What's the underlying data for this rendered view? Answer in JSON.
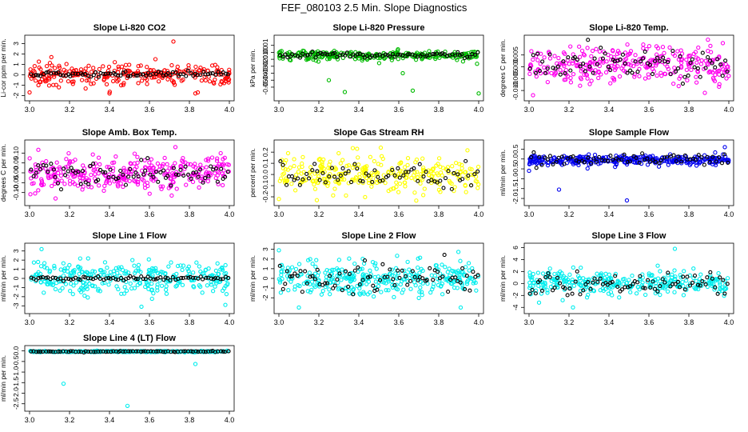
{
  "page_title": "FEF_080103  2.5 Min. Slope Diagnostics",
  "colors": {
    "black_series": "#000000",
    "frame": "#000000",
    "background": "#ffffff"
  },
  "chart_data": [
    {
      "type": "scatter",
      "title": "Slope Li-820 CO2",
      "ylabel": "Li-cor ppm per min.",
      "color": "#ff0000",
      "xlim": [
        3.0,
        4.0
      ],
      "ylim": [
        -2.2,
        3.5
      ],
      "xticks": [
        "3.0",
        "3.2",
        "3.4",
        "3.6",
        "3.8",
        "4.0"
      ],
      "yticks": [
        {
          "v": -2,
          "label": "-2"
        },
        {
          "v": -1,
          "label": "-1"
        },
        {
          "v": 0,
          "label": "0"
        },
        {
          "v": 1,
          "label": "1"
        },
        {
          "v": 2,
          "label": "2"
        },
        {
          "v": 3,
          "label": "3"
        }
      ],
      "center": 0.05,
      "spread": 0.5,
      "black_spread": 0.12,
      "n_color": 260,
      "n_black": 80,
      "outliers": [
        [
          3.72,
          3.2
        ],
        [
          3.4,
          -1.8
        ],
        [
          3.83,
          -1.8
        ],
        [
          3.0,
          -1.7
        ],
        [
          3.63,
          1.5
        ]
      ]
    },
    {
      "type": "scatter",
      "title": "Slope Li-820 Pressure",
      "ylabel": "kPa per min.",
      "color": "#00bb00",
      "xlim": [
        3.0,
        4.0
      ],
      "ylim": [
        -0.065,
        0.02
      ],
      "xticks": [
        "3.0",
        "3.2",
        "3.4",
        "3.6",
        "3.8",
        "4.0"
      ],
      "yticks": [
        {
          "v": -0.05,
          "label": "-0.05"
        },
        {
          "v": -0.04,
          "label": "-0.04"
        },
        {
          "v": -0.03,
          "label": "-0.03"
        },
        {
          "v": -0.02,
          "label": "-0.02"
        },
        {
          "v": -0.01,
          "label": "-0.01"
        },
        {
          "v": 0.0,
          "label": "0.00"
        },
        {
          "v": 0.01,
          "label": "0.01"
        }
      ],
      "center": -0.004,
      "spread": 0.0035,
      "black_spread": 0.002,
      "n_color": 260,
      "n_black": 80,
      "outliers": [
        [
          3.33,
          -0.057
        ],
        [
          3.67,
          -0.055
        ],
        [
          4.0,
          -0.059
        ],
        [
          3.25,
          -0.04
        ],
        [
          3.62,
          -0.03
        ]
      ]
    },
    {
      "type": "scatter",
      "title": "Slope Li-820 Temp.",
      "ylabel": "degrees C per min.",
      "color": "#ff00ee",
      "xlim": [
        3.0,
        4.0
      ],
      "ylim": [
        -0.013,
        0.012
      ],
      "xticks": [
        "3.0",
        "3.2",
        "3.4",
        "3.6",
        "3.8",
        "4.0"
      ],
      "yticks": [
        {
          "v": -0.01,
          "label": "-0.010"
        },
        {
          "v": -0.005,
          "label": "-0.005"
        },
        {
          "v": 0.0,
          "label": "0.000"
        },
        {
          "v": 0.005,
          "label": "0.005"
        }
      ],
      "center": 0.001,
      "spread": 0.004,
      "black_spread": 0.003,
      "n_color": 300,
      "n_black": 80,
      "outliers": [
        [
          3.97,
          0.01
        ],
        [
          3.02,
          -0.012
        ],
        [
          3.88,
          -0.011
        ]
      ]
    },
    {
      "type": "scatter",
      "title": "Slope Amb. Box Temp.",
      "ylabel": "degrees C per min.",
      "color": "#ff00ee",
      "xlim": [
        3.0,
        4.0
      ],
      "ylim": [
        -0.15,
        0.15
      ],
      "xticks": [
        "3.0",
        "3.2",
        "3.4",
        "3.6",
        "3.8",
        "4.0"
      ],
      "yticks": [
        {
          "v": -0.1,
          "label": "-0.10"
        },
        {
          "v": -0.05,
          "label": "-0.05"
        },
        {
          "v": 0.0,
          "label": "0.00"
        },
        {
          "v": 0.05,
          "label": "0.05"
        },
        {
          "v": 0.1,
          "label": "0.10"
        }
      ],
      "center": 0.0,
      "spread": 0.045,
      "black_spread": 0.035,
      "n_color": 320,
      "n_black": 80,
      "outliers": [
        [
          3.73,
          0.13
        ],
        [
          3.13,
          -0.13
        ]
      ]
    },
    {
      "type": "scatter",
      "title": "Slope Gas Stream RH",
      "ylabel": "percent per min.",
      "color": "#ffff00",
      "xlim": [
        3.0,
        4.0
      ],
      "ylim": [
        -0.25,
        0.28
      ],
      "xticks": [
        "3.0",
        "3.2",
        "3.4",
        "3.6",
        "3.8",
        "4.0"
      ],
      "yticks": [
        {
          "v": -0.2,
          "label": "-0.2"
        },
        {
          "v": -0.1,
          "label": "-0.1"
        },
        {
          "v": 0.0,
          "label": "0.0"
        },
        {
          "v": 0.1,
          "label": "0.1"
        },
        {
          "v": 0.2,
          "label": "0.2"
        }
      ],
      "center": 0.0,
      "spread": 0.07,
      "black_spread": 0.07,
      "n_color": 300,
      "n_black": 70,
      "outliers": [
        [
          3.0,
          -0.22
        ],
        [
          3.51,
          0.24
        ],
        [
          3.19,
          -0.23
        ]
      ]
    },
    {
      "type": "scatter",
      "title": "Slope Sample Flow",
      "ylabel": "ml/min per min.",
      "color": "#0000ee",
      "xlim": [
        3.0,
        4.0
      ],
      "ylim": [
        -2.2,
        0.8
      ],
      "xticks": [
        "3.0",
        "3.2",
        "3.4",
        "3.6",
        "3.8",
        "4.0"
      ],
      "yticks": [
        {
          "v": -2.0,
          "label": "-2.0"
        },
        {
          "v": -1.5,
          "label": "-1.5"
        },
        {
          "v": -1.0,
          "label": "-1.0"
        },
        {
          "v": -0.5,
          "label": "-0.5"
        },
        {
          "v": 0.0,
          "label": "0.0"
        },
        {
          "v": 0.5,
          "label": "0.5"
        }
      ],
      "center": -0.05,
      "spread": 0.12,
      "black_spread": 0.15,
      "n_color": 320,
      "n_black": 70,
      "outliers": [
        [
          3.15,
          -1.55
        ],
        [
          3.49,
          -2.1
        ],
        [
          3.98,
          0.6
        ],
        [
          3.0,
          -0.6
        ]
      ]
    },
    {
      "type": "scatter",
      "title": "Slope Line 1 Flow",
      "ylabel": "ml/min per min.",
      "color": "#00eeee",
      "xlim": [
        3.0,
        4.0
      ],
      "ylim": [
        -3.5,
        3.5
      ],
      "xticks": [
        "3.0",
        "3.2",
        "3.4",
        "3.6",
        "3.8",
        "4.0"
      ],
      "yticks": [
        {
          "v": -3,
          "label": "-3"
        },
        {
          "v": -2,
          "label": "-2"
        },
        {
          "v": -1,
          "label": "-1"
        },
        {
          "v": 0,
          "label": "0"
        },
        {
          "v": 1,
          "label": "1"
        },
        {
          "v": 2,
          "label": "2"
        },
        {
          "v": 3,
          "label": "3"
        }
      ],
      "center": 0.0,
      "spread": 0.9,
      "black_spread": 0.12,
      "n_color": 300,
      "n_black": 80,
      "outliers": [
        [
          3.06,
          3.2
        ],
        [
          3.56,
          -3.1
        ],
        [
          3.98,
          -2.9
        ]
      ]
    },
    {
      "type": "scatter",
      "title": "Slope Line 2 Flow",
      "ylabel": "ml/min per min.",
      "color": "#00eeee",
      "xlim": [
        3.0,
        4.0
      ],
      "ylim": [
        -3.3,
        3.3
      ],
      "xticks": [
        "3.0",
        "3.2",
        "3.4",
        "3.6",
        "3.8",
        "4.0"
      ],
      "yticks": [
        {
          "v": -2,
          "label": "-2"
        },
        {
          "v": -1,
          "label": "-1"
        },
        {
          "v": 0,
          "label": "0"
        },
        {
          "v": 1,
          "label": "1"
        },
        {
          "v": 2,
          "label": "2"
        },
        {
          "v": 3,
          "label": "3"
        }
      ],
      "center": 0.0,
      "spread": 0.9,
      "black_spread": 0.8,
      "n_color": 320,
      "n_black": 80,
      "outliers": [
        [
          3.1,
          -3.0
        ],
        [
          3.91,
          -3.0
        ],
        [
          3.0,
          2.9
        ]
      ]
    },
    {
      "type": "scatter",
      "title": "Slope Line 3 Flow",
      "ylabel": "ml/min per min.",
      "color": "#00eeee",
      "xlim": [
        3.0,
        4.0
      ],
      "ylim": [
        -4.5,
        6.2
      ],
      "xticks": [
        "3.0",
        "3.2",
        "3.4",
        "3.6",
        "3.8",
        "4.0"
      ],
      "yticks": [
        {
          "v": -4,
          "label": "-4"
        },
        {
          "v": -2,
          "label": "-2"
        },
        {
          "v": 0,
          "label": "0"
        },
        {
          "v": 2,
          "label": "2"
        },
        {
          "v": 4,
          "label": "4"
        },
        {
          "v": 6,
          "label": "6"
        }
      ],
      "center": 0.1,
      "spread": 1.0,
      "black_spread": 0.9,
      "n_color": 300,
      "n_black": 80,
      "outliers": [
        [
          3.73,
          5.8
        ],
        [
          3.22,
          -4.0
        ],
        [
          3.05,
          -3.2
        ]
      ]
    },
    {
      "type": "scatter",
      "title": "Slope Line 4 (LT) Flow",
      "ylabel": "ml/min per min.",
      "color": "#00eeee",
      "xlim": [
        3.0,
        4.0
      ],
      "ylim": [
        -2.7,
        0.1
      ],
      "xticks": [
        "3.0",
        "3.2",
        "3.4",
        "3.6",
        "3.8",
        "4.0"
      ],
      "yticks": [
        {
          "v": -2.5,
          "label": "-2.5"
        },
        {
          "v": -2.0,
          "label": "-2.0"
        },
        {
          "v": -1.5,
          "label": "-1.5"
        },
        {
          "v": -1.0,
          "label": "-1.0"
        },
        {
          "v": -0.5,
          "label": "-0.5"
        },
        {
          "v": 0.0,
          "label": "0.0"
        }
      ],
      "center": -0.03,
      "spread": 0.015,
      "black_spread": 0.012,
      "n_color": 260,
      "n_black": 80,
      "outliers": [
        [
          3.17,
          -1.55
        ],
        [
          3.49,
          -2.6
        ],
        [
          3.83,
          -0.62
        ]
      ]
    }
  ]
}
